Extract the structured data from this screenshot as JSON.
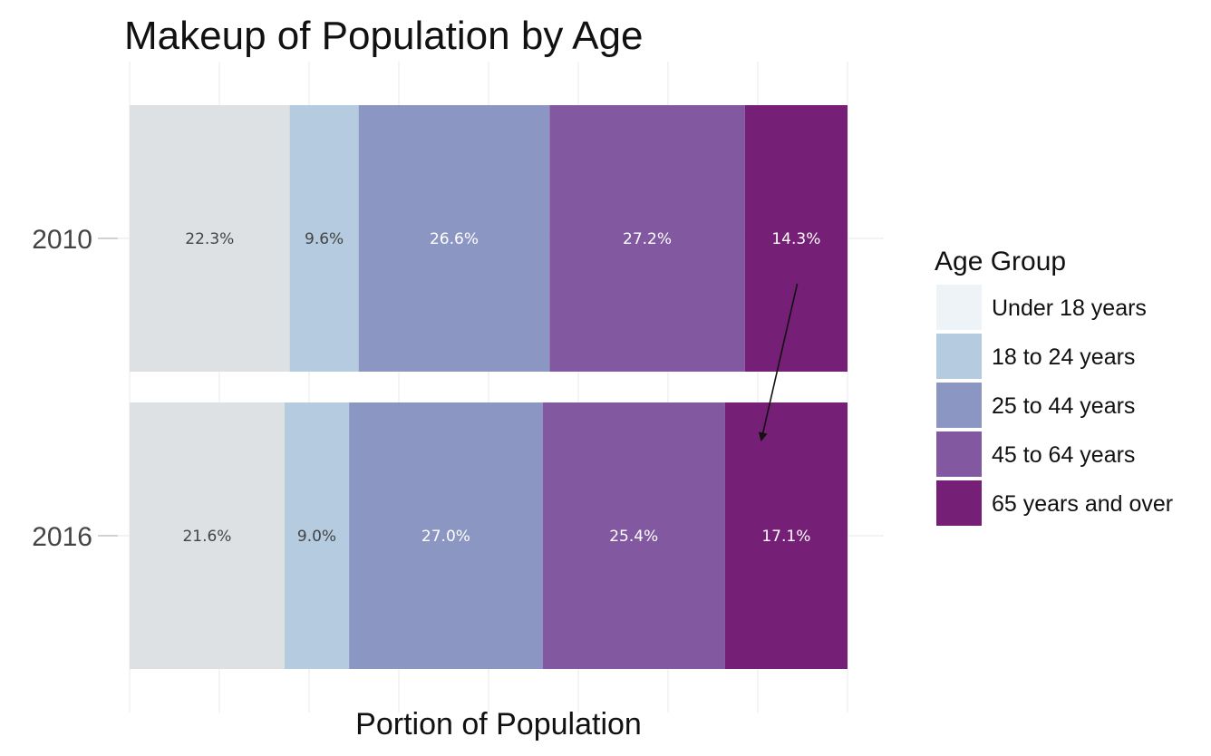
{
  "chart_data": {
    "type": "bar",
    "orientation": "horizontal",
    "stacked": true,
    "title": "Makeup of Population by Age",
    "xlabel": "Portion of Population",
    "ylabel": "",
    "categories": [
      "2010",
      "2016"
    ],
    "xlim": [
      0,
      100
    ],
    "grid": true,
    "legend_title": "Age Group",
    "legend_position": "right",
    "series": [
      {
        "name": "Under 18 years",
        "color": "#dde1e3",
        "legend_color": "#eef3f7",
        "label_color": "#444444",
        "values": [
          22.3,
          21.6
        ],
        "labels": [
          "22.3%",
          "21.6%"
        ]
      },
      {
        "name": "18 to 24 years",
        "color": "#b5cbdf",
        "label_color": "#444444",
        "values": [
          9.6,
          9.0
        ],
        "labels": [
          "9.6%",
          "9.0%"
        ]
      },
      {
        "name": "25 to 44 years",
        "color": "#8c96c3",
        "label_color": "#ffffff",
        "values": [
          26.6,
          27.0
        ],
        "labels": [
          "26.6%",
          "27.0%"
        ]
      },
      {
        "name": "45 to 64 years",
        "color": "#8258a0",
        "label_color": "#ffffff",
        "values": [
          27.2,
          25.4
        ],
        "labels": [
          "27.2%",
          "25.4%"
        ]
      },
      {
        "name": "65 years and over",
        "color": "#751f77",
        "label_color": "#ffffff",
        "values": [
          14.3,
          17.1
        ],
        "labels": [
          "14.3%",
          "17.1%"
        ]
      }
    ],
    "annotations": [
      {
        "type": "arrow",
        "from": {
          "category": "2010",
          "x": 93
        },
        "to": {
          "category": "2016",
          "x": 88
        }
      }
    ]
  }
}
